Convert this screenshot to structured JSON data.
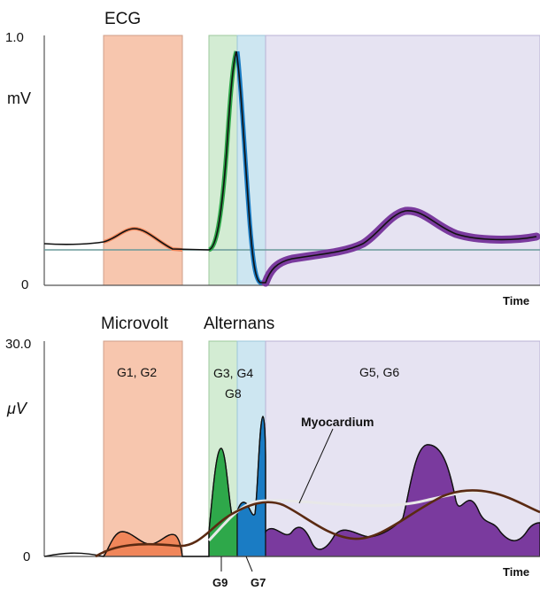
{
  "top_panel": {
    "title": "ECG",
    "y_max_label": "1.0",
    "y_min_label": "0",
    "y_unit": "mV",
    "x_label": "Time"
  },
  "bottom_panel": {
    "title_left": "Microvolt",
    "title_right": "Alternans",
    "y_max_label": "30.0",
    "y_min_label": "0",
    "y_unit": "μV",
    "x_label": "Time",
    "region_labels": {
      "p_wave": "G1, G2",
      "qrs_line1": "G3, G4",
      "qrs_line2": "G8",
      "st_t": "G5, G6"
    },
    "annotations": {
      "myocardium": "Myocardium",
      "g9": "G9",
      "g7": "G7"
    }
  },
  "colors": {
    "p_region": "#f7c6ae",
    "p_region_edge": "#cf9f8a",
    "qrs_green_region": "#d3ecd3",
    "qrs_blue_region": "#cde6f1",
    "st_region": "#e6e3f2",
    "green_trace": "#2ea84a",
    "blue_trace": "#1a7cc4",
    "purple_trace": "#7a3a9e",
    "orange_trace": "#f0865a",
    "myocardium_trace": "#5a2a12",
    "baseline": "#6a9a9a"
  }
}
